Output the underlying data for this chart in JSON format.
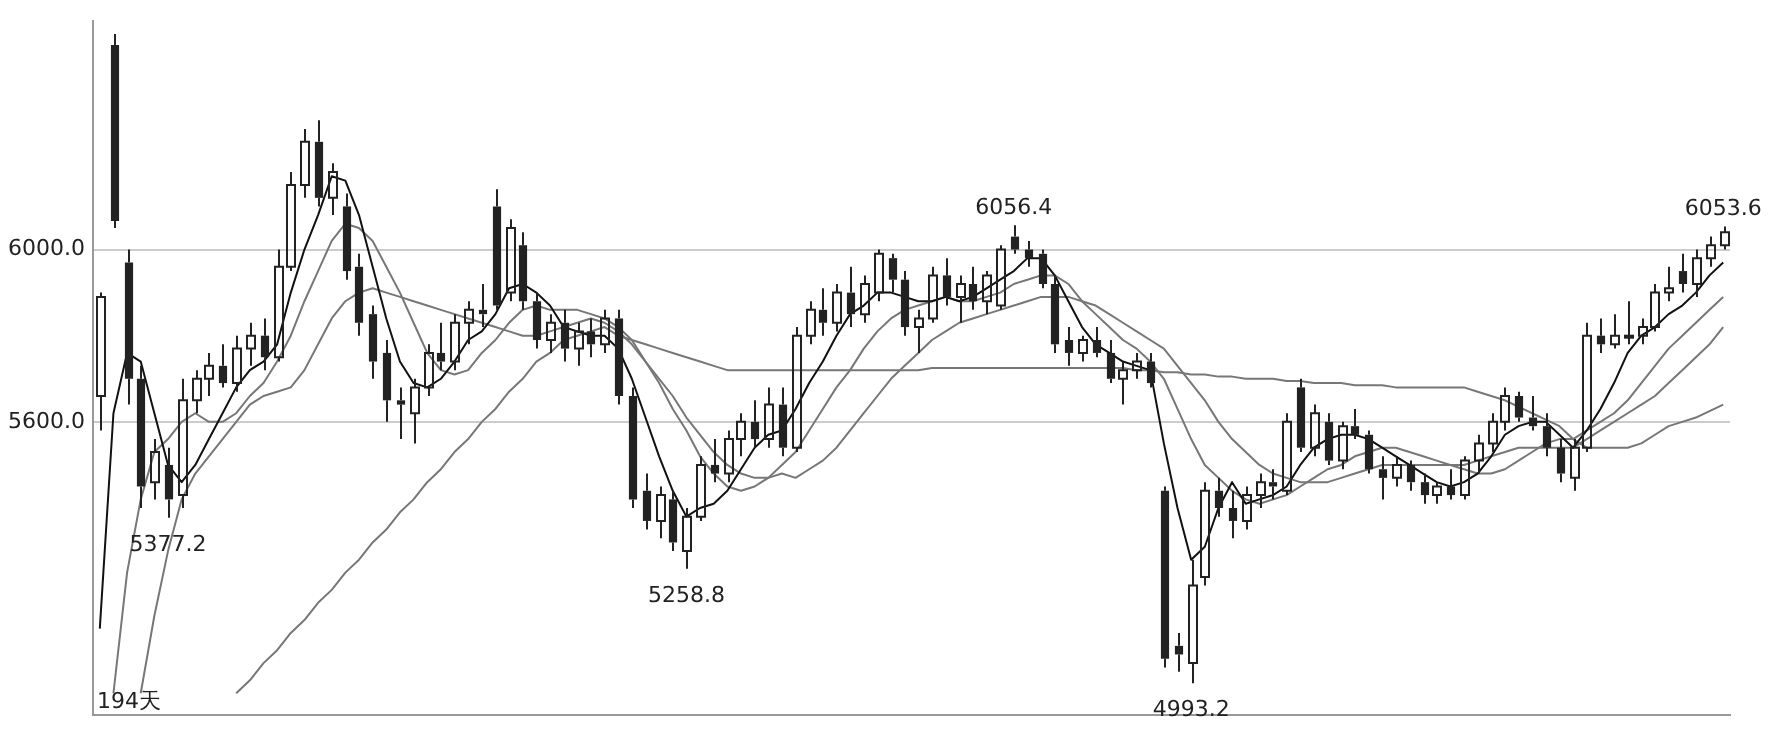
{
  "chart_data": {
    "type": "candlestick",
    "categories": [
      null,
      null,
      null,
      null,
      null,
      null,
      null,
      null,
      null,
      null,
      null,
      null,
      null,
      null,
      null,
      null,
      null,
      null,
      null,
      null,
      null,
      null,
      null,
      null,
      null,
      null,
      null,
      null,
      null,
      null,
      null,
      null,
      null,
      null,
      null,
      null,
      null,
      null,
      null,
      null,
      null,
      null,
      null,
      null,
      null,
      null,
      null,
      null,
      null,
      null,
      null,
      null,
      null,
      null,
      null,
      null,
      null,
      null,
      null,
      null,
      null,
      null,
      null,
      null,
      null,
      null,
      null,
      null,
      null,
      null,
      null,
      null,
      null,
      null,
      null,
      null,
      null,
      null,
      null,
      null,
      null,
      null,
      null,
      null,
      null,
      null,
      null,
      null,
      null,
      null,
      null,
      null,
      null,
      null,
      null,
      null,
      null,
      null,
      null,
      null,
      null,
      null,
      null,
      null,
      null,
      null,
      null,
      null,
      null,
      null,
      null,
      null,
      null,
      null,
      null,
      null,
      null,
      null,
      null,
      null
    ],
    "ohlc": [
      [
        5660,
        5900,
        5580,
        5890
      ],
      [
        6475,
        6500,
        6050,
        6066
      ],
      [
        5970,
        6000,
        5640,
        5700
      ],
      [
        5700,
        5730,
        5400,
        5450
      ],
      [
        5460,
        5560,
        5420,
        5530
      ],
      [
        5500,
        5540,
        5377.2,
        5420
      ],
      [
        5430,
        5700,
        5400,
        5650
      ],
      [
        5650,
        5720,
        5620,
        5700
      ],
      [
        5700,
        5760,
        5660,
        5730
      ],
      [
        5730,
        5780,
        5680,
        5690
      ],
      [
        5690,
        5800,
        5670,
        5770
      ],
      [
        5770,
        5830,
        5730,
        5800
      ],
      [
        5800,
        5840,
        5720,
        5750
      ],
      [
        5750,
        6000,
        5740,
        5960
      ],
      [
        5960,
        6180,
        5950,
        6150
      ],
      [
        6150,
        6280,
        6120,
        6250
      ],
      [
        6250,
        6300,
        6100,
        6120
      ],
      [
        6120,
        6200,
        6080,
        6180
      ],
      [
        6100,
        6130,
        5930,
        5950
      ],
      [
        5960,
        5990,
        5800,
        5830
      ],
      [
        5850,
        5870,
        5700,
        5740
      ],
      [
        5760,
        5790,
        5600,
        5650
      ],
      [
        5650,
        5680,
        5560,
        5640
      ],
      [
        5620,
        5700,
        5550,
        5680
      ],
      [
        5680,
        5780,
        5660,
        5760
      ],
      [
        5760,
        5830,
        5720,
        5740
      ],
      [
        5740,
        5850,
        5720,
        5830
      ],
      [
        5830,
        5880,
        5780,
        5860
      ],
      [
        5860,
        5920,
        5820,
        5850
      ],
      [
        6100,
        6140,
        5860,
        5870
      ],
      [
        5900,
        6070,
        5880,
        6050
      ],
      [
        6010,
        6040,
        5860,
        5880
      ],
      [
        5880,
        5900,
        5770,
        5790
      ],
      [
        5790,
        5850,
        5760,
        5830
      ],
      [
        5830,
        5860,
        5740,
        5770
      ],
      [
        5770,
        5830,
        5730,
        5810
      ],
      [
        5810,
        5840,
        5750,
        5780
      ],
      [
        5780,
        5860,
        5760,
        5840
      ],
      [
        5840,
        5860,
        5640,
        5660
      ],
      [
        5660,
        5680,
        5400,
        5420
      ],
      [
        5440,
        5480,
        5350,
        5370
      ],
      [
        5370,
        5450,
        5330,
        5430
      ],
      [
        5420,
        5440,
        5300,
        5320
      ],
      [
        5300,
        5400,
        5258.8,
        5380
      ],
      [
        5380,
        5520,
        5370,
        5500
      ],
      [
        5500,
        5560,
        5460,
        5480
      ],
      [
        5480,
        5580,
        5460,
        5560
      ],
      [
        5560,
        5620,
        5520,
        5600
      ],
      [
        5600,
        5650,
        5540,
        5560
      ],
      [
        5560,
        5680,
        5540,
        5640
      ],
      [
        5640,
        5680,
        5520,
        5540
      ],
      [
        5540,
        5820,
        5530,
        5800
      ],
      [
        5800,
        5880,
        5780,
        5860
      ],
      [
        5860,
        5910,
        5800,
        5830
      ],
      [
        5830,
        5920,
        5810,
        5900
      ],
      [
        5900,
        5960,
        5820,
        5850
      ],
      [
        5850,
        5940,
        5830,
        5920
      ],
      [
        5900,
        6000,
        5880,
        5990
      ],
      [
        5980,
        5990,
        5900,
        5930
      ],
      [
        5930,
        5950,
        5800,
        5820
      ],
      [
        5820,
        5860,
        5760,
        5840
      ],
      [
        5840,
        5960,
        5830,
        5940
      ],
      [
        5940,
        5980,
        5870,
        5890
      ],
      [
        5890,
        5940,
        5830,
        5920
      ],
      [
        5920,
        5960,
        5860,
        5880
      ],
      [
        5880,
        5950,
        5850,
        5940
      ],
      [
        5870,
        6010,
        5860,
        6000
      ],
      [
        6030,
        6056.4,
        5990,
        6000
      ],
      [
        6000,
        6020,
        5960,
        5980
      ],
      [
        5990,
        6000,
        5910,
        5920
      ],
      [
        5920,
        5940,
        5760,
        5780
      ],
      [
        5790,
        5820,
        5730,
        5760
      ],
      [
        5760,
        5800,
        5740,
        5790
      ],
      [
        5790,
        5820,
        5750,
        5760
      ],
      [
        5760,
        5790,
        5690,
        5700
      ],
      [
        5700,
        5740,
        5640,
        5720
      ],
      [
        5720,
        5760,
        5700,
        5740
      ],
      [
        5740,
        5760,
        5680,
        5690
      ],
      [
        5440,
        5450,
        5030,
        5050
      ],
      [
        5080,
        5110,
        5020,
        5060
      ],
      [
        5040,
        5280,
        4993.2,
        5220
      ],
      [
        5240,
        5460,
        5220,
        5440
      ],
      [
        5440,
        5470,
        5380,
        5400
      ],
      [
        5400,
        5440,
        5330,
        5370
      ],
      [
        5370,
        5450,
        5350,
        5430
      ],
      [
        5430,
        5480,
        5400,
        5460
      ],
      [
        5460,
        5490,
        5420,
        5450
      ],
      [
        5440,
        5620,
        5430,
        5600
      ],
      [
        5680,
        5700,
        5530,
        5540
      ],
      [
        5540,
        5640,
        5520,
        5620
      ],
      [
        5600,
        5620,
        5500,
        5510
      ],
      [
        5510,
        5600,
        5490,
        5590
      ],
      [
        5590,
        5630,
        5560,
        5570
      ],
      [
        5570,
        5580,
        5480,
        5490
      ],
      [
        5490,
        5520,
        5420,
        5470
      ],
      [
        5470,
        5520,
        5450,
        5500
      ],
      [
        5500,
        5510,
        5440,
        5460
      ],
      [
        5460,
        5480,
        5410,
        5430
      ],
      [
        5430,
        5460,
        5410,
        5450
      ],
      [
        5450,
        5490,
        5420,
        5430
      ],
      [
        5430,
        5520,
        5420,
        5510
      ],
      [
        5510,
        5570,
        5480,
        5550
      ],
      [
        5550,
        5620,
        5530,
        5600
      ],
      [
        5600,
        5680,
        5580,
        5660
      ],
      [
        5660,
        5670,
        5600,
        5610
      ],
      [
        5610,
        5660,
        5580,
        5590
      ],
      [
        5590,
        5620,
        5520,
        5540
      ],
      [
        5540,
        5560,
        5460,
        5480
      ],
      [
        5470,
        5560,
        5440,
        5540
      ],
      [
        5540,
        5830,
        5530,
        5800
      ],
      [
        5800,
        5840,
        5760,
        5780
      ],
      [
        5780,
        5850,
        5770,
        5800
      ],
      [
        5800,
        5880,
        5780,
        5800
      ],
      [
        5800,
        5840,
        5780,
        5820
      ],
      [
        5820,
        5920,
        5810,
        5900
      ],
      [
        5900,
        5960,
        5880,
        5910
      ],
      [
        5950,
        5990,
        5900,
        5920
      ],
      [
        5920,
        6000,
        5890,
        5980
      ],
      [
        5980,
        6030,
        5960,
        6010
      ],
      [
        6010,
        6053.6,
        6000,
        6040
      ]
    ],
    "color": "#222222",
    "series": [
      {
        "type": "line",
        "color": "#111111",
        "values": [
          5120,
          5620,
          5760,
          5740,
          5620,
          5500,
          5460,
          5500,
          5560,
          5620,
          5680,
          5720,
          5740,
          5780,
          5900,
          6000,
          6080,
          6170,
          6160,
          6080,
          5960,
          5840,
          5740,
          5690,
          5680,
          5700,
          5740,
          5790,
          5810,
          5850,
          5910,
          5920,
          5900,
          5870,
          5820,
          5810,
          5800,
          5800,
          5770,
          5700,
          5610,
          5520,
          5440,
          5380,
          5400,
          5410,
          5440,
          5490,
          5540,
          5570,
          5580,
          5630,
          5690,
          5740,
          5800,
          5850,
          5870,
          5900,
          5900,
          5890,
          5880,
          5880,
          5890,
          5880,
          5890,
          5910,
          5930,
          5950,
          5980,
          5980,
          5940,
          5880,
          5820,
          5780,
          5760,
          5740,
          5730,
          5720,
          5550,
          5400,
          5280,
          5310,
          5400,
          5460,
          5410,
          5420,
          5430,
          5450,
          5500,
          5540,
          5560,
          5570,
          5570,
          5560,
          5540,
          5520,
          5500,
          5480,
          5460,
          5450,
          5460,
          5480,
          5520,
          5570,
          5590,
          5600,
          5600,
          5570,
          5540,
          5580,
          5630,
          5690,
          5760,
          5800,
          5820,
          5850,
          5870,
          5900,
          5940,
          5970
        ]
      },
      {
        "type": "line",
        "color": "#777777",
        "values": [
          null,
          4970,
          5250,
          5420,
          5530,
          5560,
          5600,
          5620,
          5600,
          5600,
          5620,
          5660,
          5690,
          5740,
          5800,
          5880,
          5950,
          6020,
          6060,
          6050,
          6020,
          5960,
          5900,
          5830,
          5760,
          5720,
          5710,
          5720,
          5760,
          5790,
          5830,
          5860,
          5870,
          5860,
          5860,
          5860,
          5850,
          5840,
          5820,
          5790,
          5740,
          5690,
          5630,
          5580,
          5520,
          5480,
          5450,
          5440,
          5450,
          5470,
          5500,
          5530,
          5580,
          5630,
          5680,
          5720,
          5770,
          5810,
          5840,
          5860,
          5870,
          5880,
          5890,
          5880,
          5880,
          5890,
          5900,
          5920,
          5930,
          5940,
          5940,
          5920,
          5880,
          5850,
          5820,
          5790,
          5770,
          5740,
          5700,
          5630,
          5560,
          5500,
          5470,
          5440,
          5420,
          5410,
          5420,
          5430,
          5450,
          5470,
          5490,
          5500,
          5520,
          5530,
          5540,
          5540,
          5530,
          5520,
          5510,
          5500,
          5490,
          5480,
          5480,
          5490,
          5510,
          5530,
          5550,
          5560,
          5560,
          5580,
          5600,
          5620,
          5650,
          5690,
          5730,
          5770,
          5800,
          5830,
          5860,
          5890
        ]
      },
      {
        "type": "line",
        "color": "#777777",
        "values": [
          null,
          null,
          null,
          4970,
          5150,
          5300,
          5420,
          5480,
          5520,
          5560,
          5600,
          5640,
          5660,
          5670,
          5680,
          5720,
          5780,
          5840,
          5880,
          5900,
          5910,
          5900,
          5890,
          5880,
          5870,
          5860,
          5850,
          5840,
          5830,
          5820,
          5810,
          5800,
          5800,
          5810,
          5820,
          5830,
          5840,
          5830,
          5810,
          5780,
          5740,
          5700,
          5660,
          5610,
          5570,
          5530,
          5500,
          5480,
          5470,
          5470,
          5480,
          5470,
          5490,
          5510,
          5540,
          5580,
          5620,
          5660,
          5700,
          5730,
          5760,
          5790,
          5810,
          5830,
          5840,
          5850,
          5860,
          5870,
          5880,
          5890,
          5890,
          5890,
          5880,
          5870,
          5850,
          5830,
          5810,
          5790,
          5770,
          5730,
          5690,
          5650,
          5600,
          5560,
          5530,
          5500,
          5480,
          5470,
          5460,
          5460,
          5460,
          5470,
          5480,
          5490,
          5500,
          5500,
          5500,
          5500,
          5500,
          5500,
          5500,
          5510,
          5520,
          5530,
          5540,
          5540,
          5540,
          5540,
          5540,
          5560,
          5580,
          5600,
          5620,
          5640,
          5660,
          5690,
          5720,
          5750,
          5780,
          5820
        ]
      },
      {
        "type": "line",
        "color": "#777777",
        "values": [
          null,
          null,
          null,
          null,
          null,
          null,
          null,
          null,
          null,
          null,
          4970,
          5000,
          5040,
          5070,
          5110,
          5140,
          5180,
          5210,
          5250,
          5280,
          5320,
          5350,
          5390,
          5420,
          5460,
          5490,
          5530,
          5560,
          5600,
          5630,
          5670,
          5700,
          5740,
          5760,
          5790,
          5800,
          5810,
          5820,
          5800,
          5790,
          5780,
          5770,
          5760,
          5750,
          5740,
          5730,
          5720,
          5720,
          5720,
          5720,
          5720,
          5720,
          5720,
          5720,
          5720,
          5720,
          5720,
          5720,
          5720,
          5720,
          5720,
          5725,
          5725,
          5725,
          5725,
          5725,
          5725,
          5725,
          5725,
          5725,
          5725,
          5725,
          5725,
          5725,
          5725,
          5725,
          5720,
          5720,
          5715,
          5715,
          5710,
          5710,
          5705,
          5705,
          5700,
          5700,
          5700,
          5695,
          5695,
          5690,
          5690,
          5690,
          5685,
          5685,
          5685,
          5680,
          5680,
          5680,
          5680,
          5680,
          5680,
          5670,
          5660,
          5650,
          5635,
          5620,
          5605,
          5590,
          5560,
          5540,
          5540,
          5540,
          5540,
          5550,
          5570,
          5590,
          5600,
          5610,
          5625,
          5640
        ]
      }
    ],
    "ylim": [
      4920,
      6530
    ],
    "yticks": [
      {
        "value": 5600,
        "label": "5600.0"
      },
      {
        "value": 6000,
        "label": "6000.0"
      }
    ],
    "grid": "y",
    "legend": false,
    "annotations": [
      {
        "text": "5377.2",
        "y": 5377.2
      },
      {
        "text": "5258.8",
        "y": 5258.8
      },
      {
        "text": "6056.4",
        "y": 6056.4
      },
      {
        "text": "4993.2",
        "y": 4993.2
      },
      {
        "text": "6053.6",
        "y": 6053.6
      },
      "194天"
    ]
  }
}
